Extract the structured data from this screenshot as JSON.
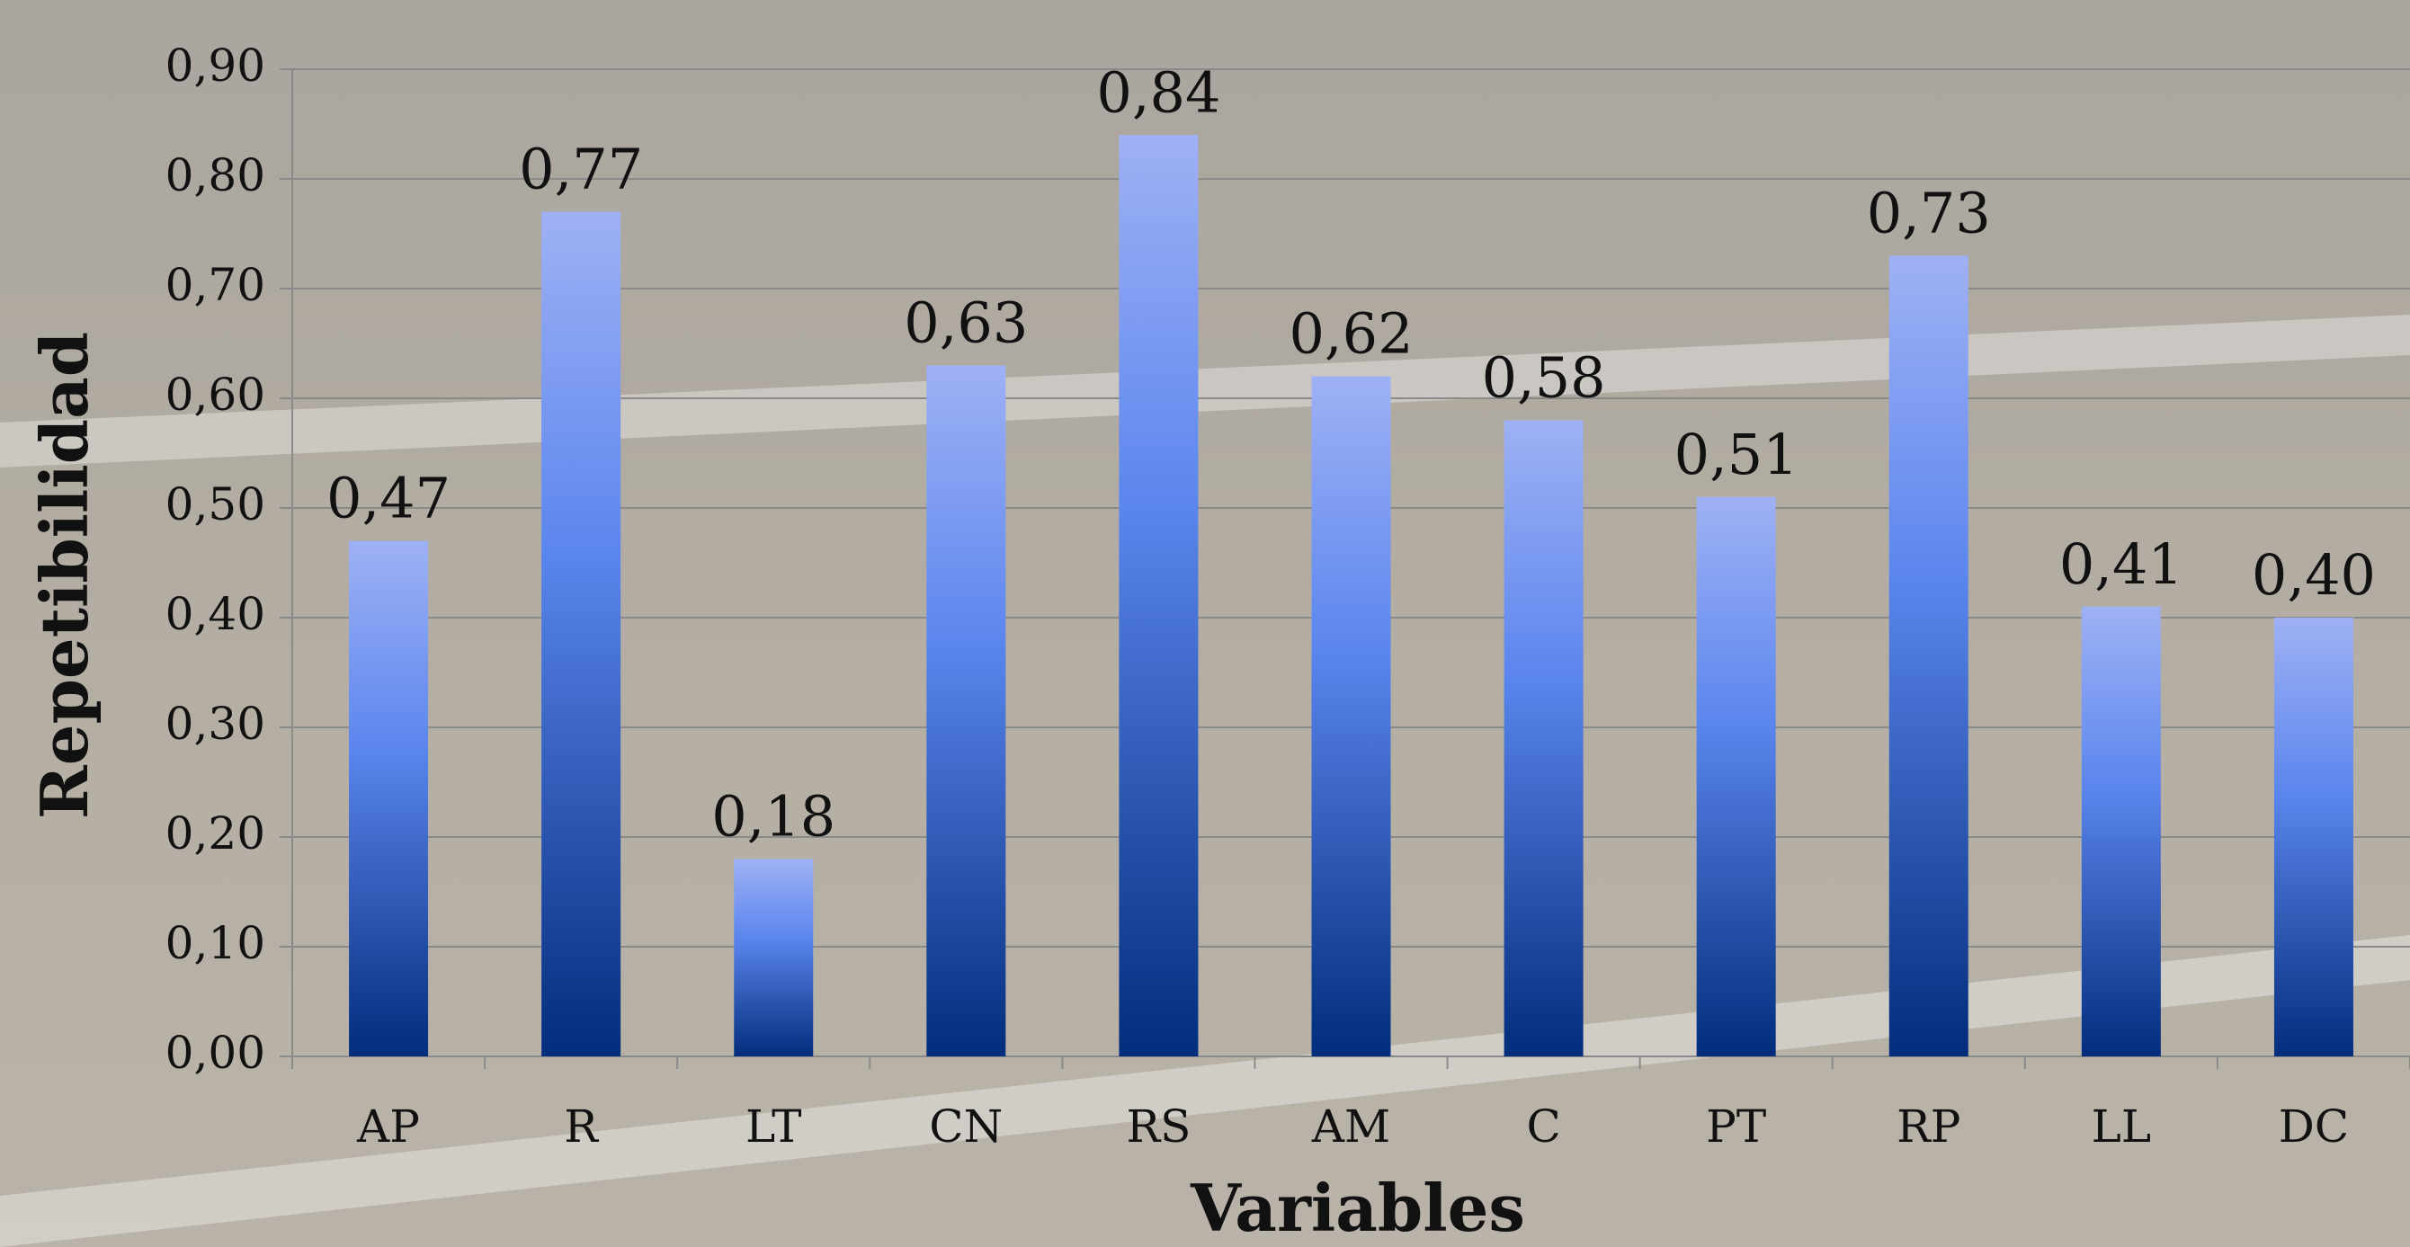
{
  "chart_data": {
    "type": "bar",
    "x_label": "Variables",
    "y_label": "Repetibilidad",
    "categories": [
      "AP",
      "R",
      "LT",
      "CN",
      "RS",
      "AM",
      "C",
      "PT",
      "RP",
      "LL",
      "DC"
    ],
    "values": [
      0.47,
      0.77,
      0.18,
      0.63,
      0.84,
      0.62,
      0.58,
      0.51,
      0.73,
      0.41,
      0.4
    ],
    "value_labels": [
      "0,47",
      "0,77",
      "0,18",
      "0,63",
      "0,84",
      "0,62",
      "0,58",
      "0,51",
      "0,73",
      "0,41",
      "0,40"
    ],
    "ylim": [
      0,
      0.9
    ],
    "yticks": [
      {
        "value": 0,
        "label": "0,00"
      },
      {
        "value": 0.1,
        "label": "0,10"
      },
      {
        "value": 0.2,
        "label": "0,20"
      },
      {
        "value": 0.3,
        "label": "0,30"
      },
      {
        "value": 0.4,
        "label": "0,40"
      },
      {
        "value": 0.5,
        "label": "0,50"
      },
      {
        "value": 0.6,
        "label": "0,60"
      },
      {
        "value": 0.7,
        "label": "0,70"
      },
      {
        "value": 0.8,
        "label": "0,80"
      },
      {
        "value": 0.9,
        "label": "0,90"
      }
    ],
    "grid": true
  }
}
